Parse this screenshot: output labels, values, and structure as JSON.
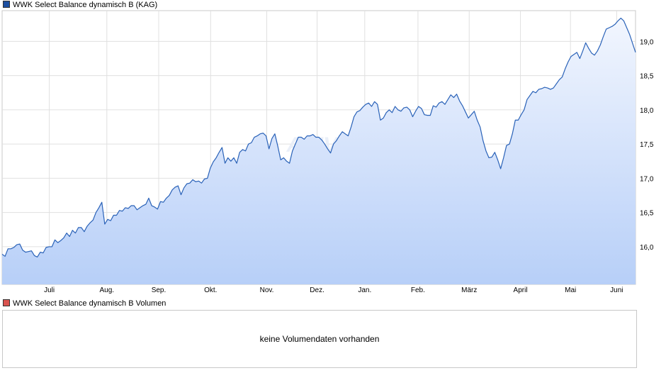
{
  "legend": {
    "price_label": "WWK Select Balance dynamisch B (KAG)",
    "price_color": "#1c4fa0",
    "volume_label": "WWK Select Balance dynamisch B Volumen",
    "volume_color": "#d9534f"
  },
  "volume_panel": {
    "message": "keine Volumendaten vorhanden"
  },
  "watermark": "ARIVA",
  "chart_data": {
    "type": "area",
    "ylim": [
      15.45,
      19.45
    ],
    "y_ticks": [
      16.0,
      16.5,
      17.0,
      17.5,
      18.0,
      18.5,
      19.0
    ],
    "y_tick_labels": [
      "16,0",
      "16,5",
      "17,0",
      "17,5",
      "18,0",
      "18,5",
      "19,0"
    ],
    "x_labels": [
      "Juli",
      "Aug.",
      "Sep.",
      "Okt.",
      "Nov.",
      "Dez.",
      "Jan.",
      "Feb.",
      "März",
      "April",
      "Mai",
      "Juni"
    ],
    "grid": true,
    "line_color": "#2a62b8",
    "fill_top_color": "#f2f6fe",
    "fill_bottom_color": "#b7cff8",
    "series": [
      {
        "values": [
          15.89,
          15.86,
          15.97,
          15.97,
          15.99,
          16.03,
          16.04,
          15.95,
          15.92,
          15.93,
          15.94,
          15.87,
          15.85,
          15.92,
          15.91,
          15.99,
          16.0,
          16.0,
          16.1,
          16.06,
          16.09,
          16.13,
          16.2,
          16.15,
          16.24,
          16.2,
          16.28,
          16.28,
          16.22,
          16.3,
          16.35,
          16.39,
          16.5,
          16.57,
          16.65,
          16.33,
          16.4,
          16.38,
          16.46,
          16.46,
          16.53,
          16.52,
          16.57,
          16.56,
          16.6,
          16.6,
          16.54,
          16.57,
          16.6,
          16.62,
          16.71,
          16.6,
          16.58,
          16.55,
          16.66,
          16.65,
          16.71,
          16.75,
          16.83,
          16.87,
          16.89,
          16.76,
          16.86,
          16.92,
          16.93,
          16.98,
          16.95,
          16.96,
          16.93,
          16.99,
          17.0,
          17.15,
          17.24,
          17.3,
          17.38,
          17.45,
          17.22,
          17.3,
          17.25,
          17.3,
          17.22,
          17.38,
          17.42,
          17.4,
          17.5,
          17.52,
          17.6,
          17.62,
          17.65,
          17.66,
          17.62,
          17.43,
          17.58,
          17.65,
          17.47,
          17.27,
          17.3,
          17.25,
          17.22,
          17.4,
          17.5,
          17.6,
          17.6,
          17.57,
          17.62,
          17.62,
          17.64,
          17.6,
          17.6,
          17.56,
          17.5,
          17.43,
          17.37,
          17.5,
          17.55,
          17.62,
          17.68,
          17.65,
          17.62,
          17.75,
          17.9,
          17.97,
          17.99,
          18.04,
          18.08,
          18.1,
          18.05,
          18.12,
          18.08,
          17.85,
          17.88,
          17.96,
          18.0,
          17.96,
          18.05,
          18.0,
          17.98,
          18.03,
          18.04,
          18.0,
          17.9,
          17.98,
          18.05,
          18.02,
          17.93,
          17.92,
          17.92,
          18.06,
          18.04,
          18.1,
          18.12,
          18.08,
          18.15,
          18.22,
          18.18,
          18.23,
          18.13,
          18.06,
          17.97,
          17.88,
          17.93,
          17.98,
          17.85,
          17.75,
          17.55,
          17.4,
          17.3,
          17.31,
          17.38,
          17.27,
          17.14,
          17.3,
          17.48,
          17.5,
          17.65,
          17.85,
          17.85,
          17.93,
          18.0,
          18.15,
          18.21,
          18.27,
          18.25,
          18.3,
          18.31,
          18.33,
          18.32,
          18.3,
          18.32,
          18.38,
          18.44,
          18.48,
          18.6,
          18.7,
          18.78,
          18.81,
          18.84,
          18.75,
          18.86,
          18.98,
          18.9,
          18.83,
          18.8,
          18.86,
          18.95,
          19.07,
          19.18,
          19.2,
          19.22,
          19.25,
          19.3,
          19.34,
          19.3,
          19.2,
          19.1,
          18.97,
          18.84
        ]
      }
    ]
  }
}
